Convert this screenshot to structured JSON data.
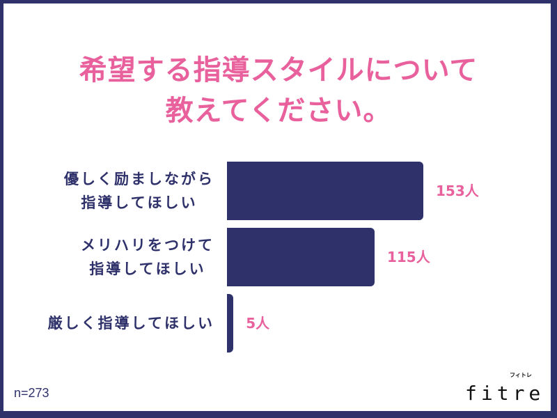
{
  "title": {
    "line1": "希望する指導スタイルについて",
    "line2": "教えてください。"
  },
  "chart_data": {
    "type": "bar",
    "orientation": "horizontal",
    "categories": [
      [
        "優しく励ましながら",
        "指導してほしい"
      ],
      [
        "メリハリをつけて",
        "指導してほしい"
      ],
      [
        "厳しく指導してほしい"
      ]
    ],
    "values": [
      153,
      115,
      5
    ],
    "value_labels": [
      "153人",
      "115人",
      "5人"
    ],
    "unit": "人",
    "bar_color": "#2f316b",
    "label_color": "#e8609c",
    "grid": false
  },
  "sample_size": "n=273",
  "logo": {
    "text": "fitre",
    "sub": "フィトレ"
  }
}
